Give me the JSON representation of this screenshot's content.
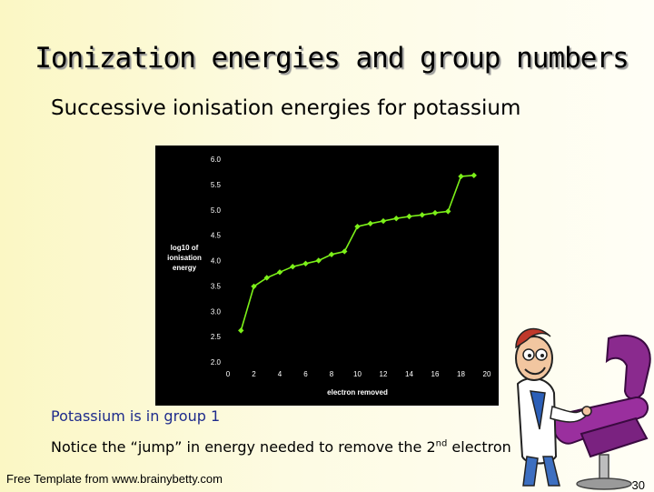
{
  "slide": {
    "title": "Ionization energies and group numbers",
    "subtitle": "Successive ionisation energies for potassium",
    "note1": "Potassium is in group 1",
    "note2_before": "Notice the “jump” in energy needed to remove the 2",
    "note2_sup": "nd",
    "note2_after": " electron",
    "footer": "Free Template from www.brainybetty.com",
    "page_number": "30"
  },
  "colors": {
    "chart_background": "#000000",
    "series": "#7cf019",
    "axis_text": "#ffffff",
    "note1": "#1e2b8c"
  },
  "clipart": {
    "icon": "cartoon-dentist-with-chair-icon"
  },
  "chart_data": {
    "type": "line",
    "xlabel": "electron removed",
    "ylabel_lines": [
      "log10 of",
      "ionisation",
      "energy"
    ],
    "xlim": [
      0,
      20
    ],
    "ylim": [
      2.0,
      6.0
    ],
    "x_ticks": [
      0,
      2,
      4,
      6,
      8,
      10,
      12,
      14,
      16,
      18,
      20
    ],
    "y_ticks": [
      "2.0",
      "2.5",
      "3.0",
      "3.5",
      "4.0",
      "4.5",
      "5.0",
      "5.5",
      "6.0"
    ],
    "grid": false,
    "x": [
      1,
      2,
      3,
      4,
      5,
      6,
      7,
      8,
      9,
      10,
      11,
      12,
      13,
      14,
      15,
      16,
      17,
      18,
      19
    ],
    "values": [
      2.62,
      3.49,
      3.66,
      3.77,
      3.88,
      3.94,
      4.0,
      4.12,
      4.18,
      4.67,
      4.73,
      4.78,
      4.83,
      4.87,
      4.9,
      4.94,
      4.97,
      5.66,
      5.68
    ]
  }
}
